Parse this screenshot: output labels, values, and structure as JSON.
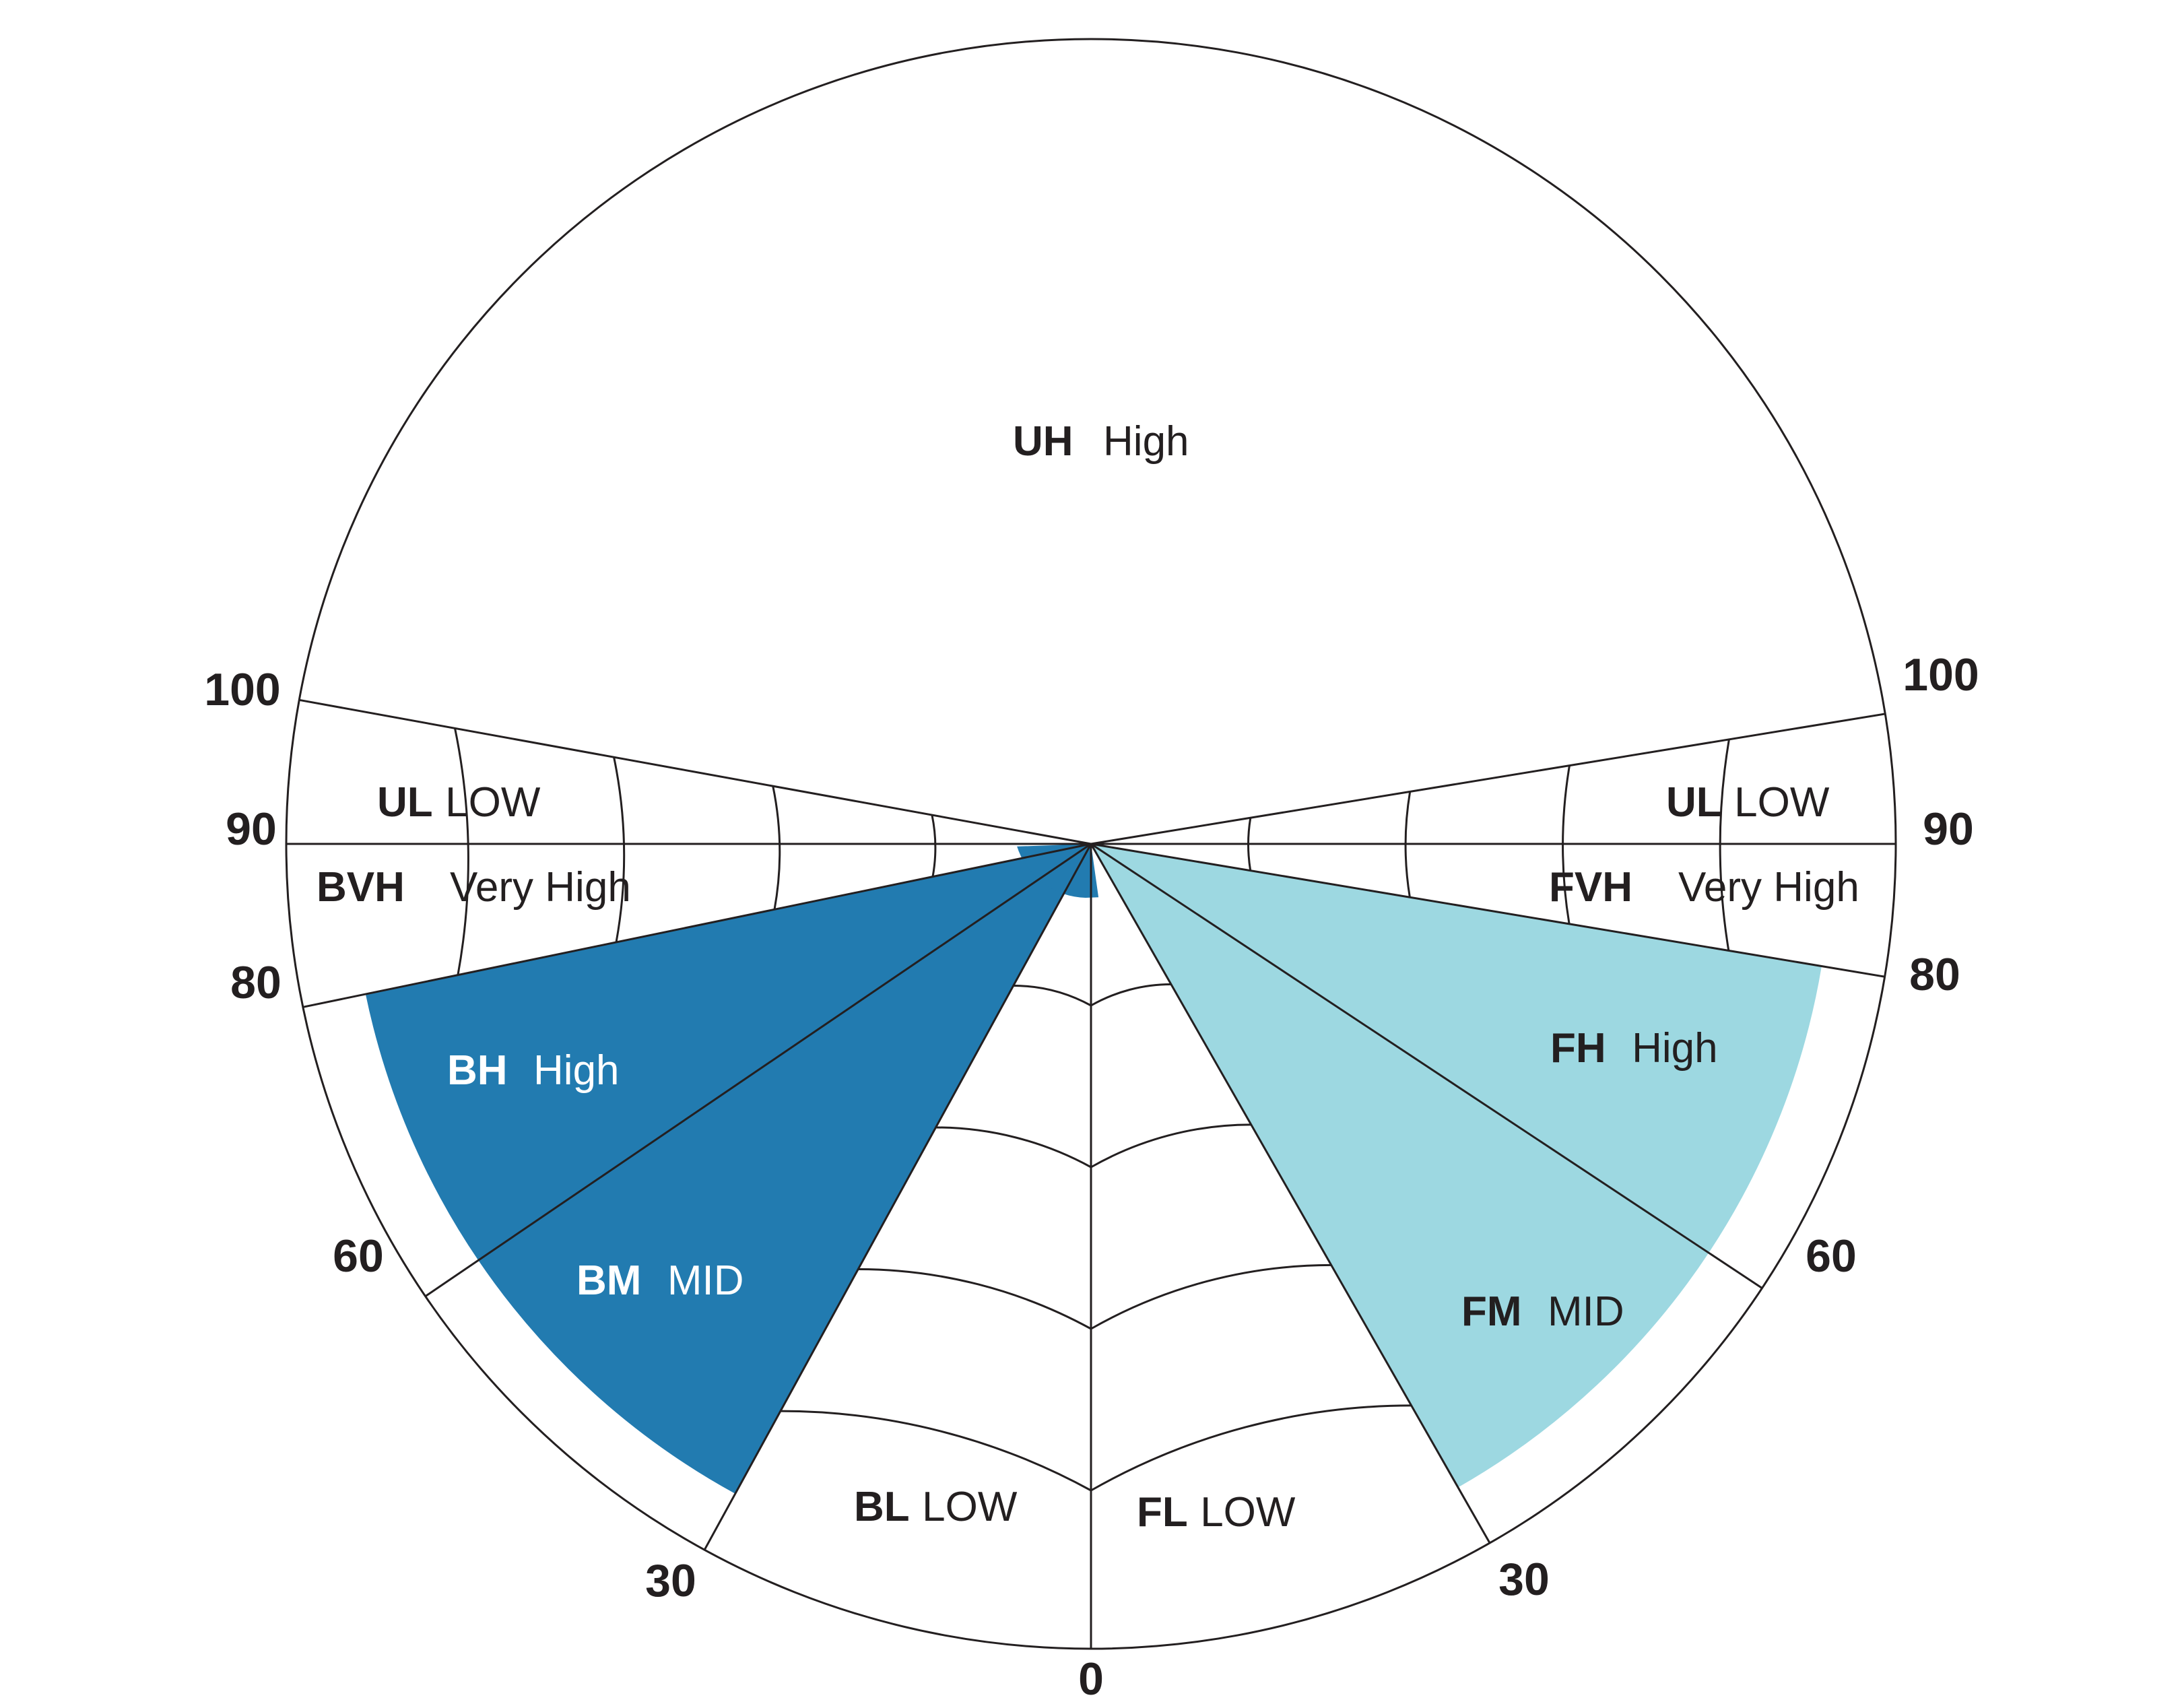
{
  "colors": {
    "back": "#227bb0",
    "forward": "#9dd8e1",
    "line": "#231f20",
    "text_dark": "#231f20",
    "text_light": "#ffffff"
  },
  "labels": {
    "uh": {
      "code": "UH",
      "level": "High"
    },
    "ul_left": {
      "code": "UL",
      "level": "LOW"
    },
    "ul_right": {
      "code": "UL",
      "level": "LOW"
    },
    "bvh": {
      "code": "BVH",
      "level": "Very High"
    },
    "fvh": {
      "code": "FVH",
      "level": "Very High"
    },
    "bh": {
      "code": "BH",
      "level": "High"
    },
    "fh": {
      "code": "FH",
      "level": "High"
    },
    "bm": {
      "code": "BM",
      "level": "MID"
    },
    "fm": {
      "code": "FM",
      "level": "MID"
    },
    "bl": {
      "code": "BL",
      "level": "LOW"
    },
    "fl": {
      "code": "FL",
      "level": "LOW"
    }
  },
  "degrees": {
    "left": [
      "100",
      "90",
      "80",
      "60",
      "30"
    ],
    "right": [
      "100",
      "90",
      "80",
      "60",
      "30"
    ],
    "bottom": "0"
  },
  "sectors": {
    "back_high": [
      60,
      80
    ],
    "back_mid": [
      30,
      60
    ],
    "forward_high": [
      60,
      80
    ],
    "forward_mid": [
      30,
      60
    ]
  }
}
